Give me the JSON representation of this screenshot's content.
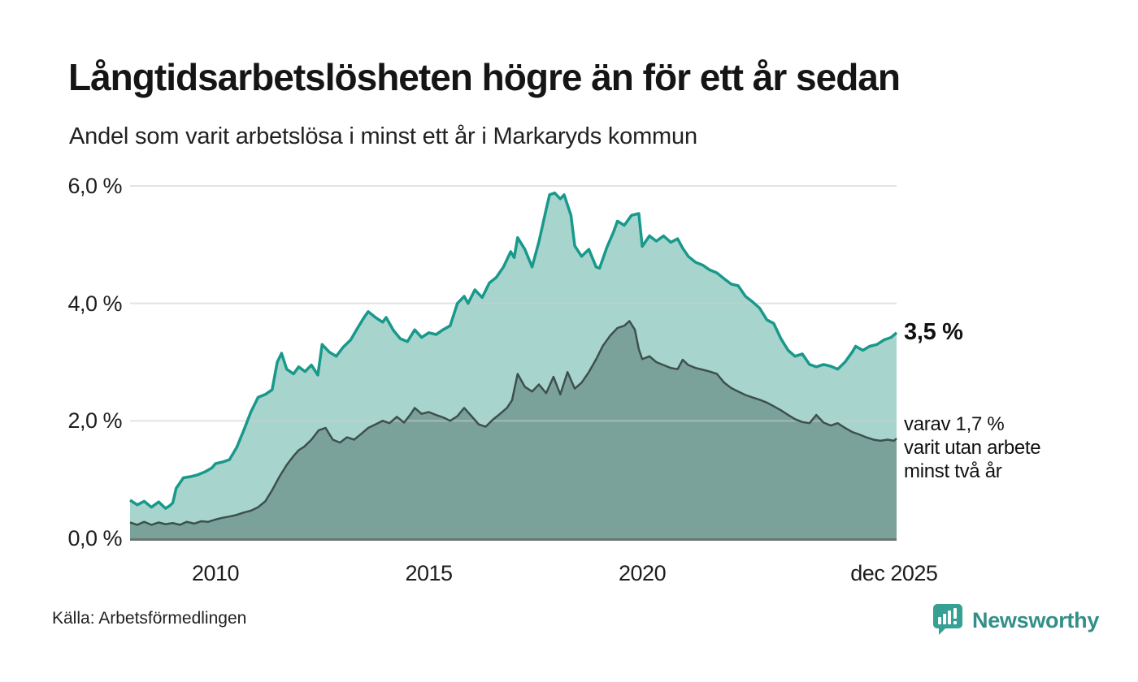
{
  "header": {
    "title": "Långtidsarbetslösheten högre än för ett år sedan",
    "subtitle": "Andel som varit arbetslösa i minst ett år i Markaryds kommun"
  },
  "chart_data": {
    "type": "area",
    "title": "Långtidsarbetslösheten högre än för ett år sedan",
    "subtitle": "Andel som varit arbetslösa i minst ett år i Markaryds kommun",
    "x_domain": [
      2008.0,
      2025.96
    ],
    "y_domain": [
      0,
      6
    ],
    "grid": "horizontal",
    "y_ticks": [
      {
        "label": "6,0 %",
        "value": 6
      },
      {
        "label": "4,0 %",
        "value": 4
      },
      {
        "label": "2,0 %",
        "value": 2
      },
      {
        "label": "0,0 %",
        "value": 0
      }
    ],
    "x_ticks": [
      {
        "label": "2010",
        "value": 2010
      },
      {
        "label": "2015",
        "value": 2015
      },
      {
        "label": "2020",
        "value": 2020
      },
      {
        "label": "dec 2025",
        "value": 2025.9
      }
    ],
    "colors": {
      "line_total": "#18998b",
      "fill_total": "#a7d5ce",
      "line_two_years": "#3e504c",
      "fill_two_years": "#7aa29b",
      "gridline": "#c8cecc",
      "axis": "#6a7673"
    },
    "series": [
      {
        "name": "arbetslösa minst ett år",
        "latest_label": "3,5 %",
        "points": [
          [
            2008.0,
            0.65
          ],
          [
            2008.17,
            0.57
          ],
          [
            2008.33,
            0.63
          ],
          [
            2008.5,
            0.53
          ],
          [
            2008.67,
            0.62
          ],
          [
            2008.83,
            0.51
          ],
          [
            2008.92,
            0.55
          ],
          [
            2009.0,
            0.6
          ],
          [
            2009.08,
            0.85
          ],
          [
            2009.25,
            1.03
          ],
          [
            2009.42,
            1.05
          ],
          [
            2009.58,
            1.08
          ],
          [
            2009.75,
            1.13
          ],
          [
            2009.92,
            1.2
          ],
          [
            2010.0,
            1.27
          ],
          [
            2010.17,
            1.3
          ],
          [
            2010.33,
            1.34
          ],
          [
            2010.5,
            1.55
          ],
          [
            2010.67,
            1.85
          ],
          [
            2010.83,
            2.15
          ],
          [
            2011.0,
            2.4
          ],
          [
            2011.17,
            2.45
          ],
          [
            2011.33,
            2.53
          ],
          [
            2011.45,
            3.0
          ],
          [
            2011.55,
            3.15
          ],
          [
            2011.67,
            2.88
          ],
          [
            2011.83,
            2.8
          ],
          [
            2011.95,
            2.92
          ],
          [
            2012.1,
            2.84
          ],
          [
            2012.25,
            2.95
          ],
          [
            2012.4,
            2.78
          ],
          [
            2012.5,
            3.3
          ],
          [
            2012.67,
            3.17
          ],
          [
            2012.83,
            3.1
          ],
          [
            2013.0,
            3.26
          ],
          [
            2013.17,
            3.38
          ],
          [
            2013.33,
            3.58
          ],
          [
            2013.5,
            3.78
          ],
          [
            2013.58,
            3.86
          ],
          [
            2013.75,
            3.76
          ],
          [
            2013.92,
            3.68
          ],
          [
            2014.0,
            3.76
          ],
          [
            2014.17,
            3.54
          ],
          [
            2014.33,
            3.4
          ],
          [
            2014.5,
            3.35
          ],
          [
            2014.67,
            3.55
          ],
          [
            2014.83,
            3.42
          ],
          [
            2015.0,
            3.5
          ],
          [
            2015.17,
            3.47
          ],
          [
            2015.33,
            3.55
          ],
          [
            2015.5,
            3.62
          ],
          [
            2015.67,
            4.0
          ],
          [
            2015.83,
            4.12
          ],
          [
            2015.92,
            4.0
          ],
          [
            2016.08,
            4.23
          ],
          [
            2016.25,
            4.1
          ],
          [
            2016.42,
            4.35
          ],
          [
            2016.58,
            4.44
          ],
          [
            2016.75,
            4.62
          ],
          [
            2016.92,
            4.88
          ],
          [
            2017.0,
            4.78
          ],
          [
            2017.08,
            5.12
          ],
          [
            2017.25,
            4.92
          ],
          [
            2017.42,
            4.62
          ],
          [
            2017.58,
            5.05
          ],
          [
            2017.75,
            5.6
          ],
          [
            2017.83,
            5.85
          ],
          [
            2017.95,
            5.88
          ],
          [
            2018.08,
            5.78
          ],
          [
            2018.17,
            5.85
          ],
          [
            2018.33,
            5.5
          ],
          [
            2018.42,
            4.98
          ],
          [
            2018.58,
            4.8
          ],
          [
            2018.75,
            4.92
          ],
          [
            2018.92,
            4.62
          ],
          [
            2019.0,
            4.6
          ],
          [
            2019.17,
            4.95
          ],
          [
            2019.33,
            5.22
          ],
          [
            2019.42,
            5.4
          ],
          [
            2019.58,
            5.33
          ],
          [
            2019.75,
            5.5
          ],
          [
            2019.92,
            5.53
          ],
          [
            2020.0,
            4.97
          ],
          [
            2020.17,
            5.15
          ],
          [
            2020.33,
            5.06
          ],
          [
            2020.5,
            5.15
          ],
          [
            2020.67,
            5.04
          ],
          [
            2020.83,
            5.1
          ],
          [
            2020.95,
            4.94
          ],
          [
            2021.08,
            4.8
          ],
          [
            2021.25,
            4.7
          ],
          [
            2021.42,
            4.65
          ],
          [
            2021.58,
            4.57
          ],
          [
            2021.75,
            4.52
          ],
          [
            2021.92,
            4.42
          ],
          [
            2022.08,
            4.33
          ],
          [
            2022.25,
            4.3
          ],
          [
            2022.42,
            4.12
          ],
          [
            2022.58,
            4.03
          ],
          [
            2022.75,
            3.92
          ],
          [
            2022.92,
            3.72
          ],
          [
            2023.08,
            3.66
          ],
          [
            2023.25,
            3.4
          ],
          [
            2023.42,
            3.2
          ],
          [
            2023.58,
            3.1
          ],
          [
            2023.75,
            3.14
          ],
          [
            2023.92,
            2.96
          ],
          [
            2024.08,
            2.92
          ],
          [
            2024.25,
            2.96
          ],
          [
            2024.42,
            2.93
          ],
          [
            2024.58,
            2.88
          ],
          [
            2024.75,
            3.0
          ],
          [
            2024.92,
            3.17
          ],
          [
            2025.0,
            3.27
          ],
          [
            2025.17,
            3.2
          ],
          [
            2025.33,
            3.27
          ],
          [
            2025.5,
            3.3
          ],
          [
            2025.67,
            3.38
          ],
          [
            2025.83,
            3.42
          ],
          [
            2025.96,
            3.5
          ]
        ]
      },
      {
        "name": "varav utan arbete minst två år",
        "latest_label": "1,7 %",
        "points": [
          [
            2008.0,
            0.27
          ],
          [
            2008.17,
            0.23
          ],
          [
            2008.33,
            0.28
          ],
          [
            2008.5,
            0.23
          ],
          [
            2008.67,
            0.27
          ],
          [
            2008.83,
            0.24
          ],
          [
            2009.0,
            0.26
          ],
          [
            2009.17,
            0.23
          ],
          [
            2009.33,
            0.28
          ],
          [
            2009.5,
            0.25
          ],
          [
            2009.67,
            0.29
          ],
          [
            2009.83,
            0.28
          ],
          [
            2010.0,
            0.32
          ],
          [
            2010.17,
            0.35
          ],
          [
            2010.33,
            0.37
          ],
          [
            2010.5,
            0.4
          ],
          [
            2010.67,
            0.44
          ],
          [
            2010.83,
            0.47
          ],
          [
            2011.0,
            0.53
          ],
          [
            2011.17,
            0.63
          ],
          [
            2011.33,
            0.82
          ],
          [
            2011.5,
            1.05
          ],
          [
            2011.67,
            1.25
          ],
          [
            2011.83,
            1.4
          ],
          [
            2011.95,
            1.5
          ],
          [
            2012.08,
            1.56
          ],
          [
            2012.25,
            1.68
          ],
          [
            2012.42,
            1.84
          ],
          [
            2012.58,
            1.88
          ],
          [
            2012.75,
            1.68
          ],
          [
            2012.92,
            1.63
          ],
          [
            2013.08,
            1.72
          ],
          [
            2013.25,
            1.68
          ],
          [
            2013.42,
            1.78
          ],
          [
            2013.58,
            1.88
          ],
          [
            2013.75,
            1.94
          ],
          [
            2013.92,
            2.0
          ],
          [
            2014.08,
            1.96
          ],
          [
            2014.25,
            2.07
          ],
          [
            2014.42,
            1.97
          ],
          [
            2014.58,
            2.12
          ],
          [
            2014.67,
            2.22
          ],
          [
            2014.83,
            2.12
          ],
          [
            2015.0,
            2.15
          ],
          [
            2015.17,
            2.1
          ],
          [
            2015.33,
            2.06
          ],
          [
            2015.5,
            2.0
          ],
          [
            2015.67,
            2.08
          ],
          [
            2015.83,
            2.22
          ],
          [
            2016.0,
            2.08
          ],
          [
            2016.17,
            1.94
          ],
          [
            2016.33,
            1.9
          ],
          [
            2016.5,
            2.02
          ],
          [
            2016.67,
            2.12
          ],
          [
            2016.83,
            2.22
          ],
          [
            2016.95,
            2.35
          ],
          [
            2017.08,
            2.8
          ],
          [
            2017.25,
            2.58
          ],
          [
            2017.42,
            2.5
          ],
          [
            2017.58,
            2.62
          ],
          [
            2017.75,
            2.47
          ],
          [
            2017.92,
            2.75
          ],
          [
            2018.08,
            2.45
          ],
          [
            2018.25,
            2.83
          ],
          [
            2018.42,
            2.55
          ],
          [
            2018.58,
            2.65
          ],
          [
            2018.75,
            2.83
          ],
          [
            2018.92,
            3.05
          ],
          [
            2019.08,
            3.28
          ],
          [
            2019.25,
            3.45
          ],
          [
            2019.42,
            3.58
          ],
          [
            2019.58,
            3.62
          ],
          [
            2019.7,
            3.7
          ],
          [
            2019.83,
            3.55
          ],
          [
            2019.92,
            3.22
          ],
          [
            2020.0,
            3.05
          ],
          [
            2020.17,
            3.1
          ],
          [
            2020.33,
            3.0
          ],
          [
            2020.5,
            2.95
          ],
          [
            2020.67,
            2.9
          ],
          [
            2020.83,
            2.88
          ],
          [
            2020.95,
            3.04
          ],
          [
            2021.08,
            2.95
          ],
          [
            2021.25,
            2.9
          ],
          [
            2021.42,
            2.87
          ],
          [
            2021.58,
            2.84
          ],
          [
            2021.75,
            2.8
          ],
          [
            2021.92,
            2.65
          ],
          [
            2022.08,
            2.56
          ],
          [
            2022.25,
            2.5
          ],
          [
            2022.42,
            2.44
          ],
          [
            2022.58,
            2.4
          ],
          [
            2022.75,
            2.36
          ],
          [
            2022.92,
            2.31
          ],
          [
            2023.08,
            2.25
          ],
          [
            2023.25,
            2.18
          ],
          [
            2023.42,
            2.1
          ],
          [
            2023.58,
            2.03
          ],
          [
            2023.75,
            1.98
          ],
          [
            2023.92,
            1.96
          ],
          [
            2024.08,
            2.1
          ],
          [
            2024.25,
            1.97
          ],
          [
            2024.42,
            1.92
          ],
          [
            2024.58,
            1.96
          ],
          [
            2024.75,
            1.88
          ],
          [
            2024.92,
            1.81
          ],
          [
            2025.08,
            1.77
          ],
          [
            2025.25,
            1.72
          ],
          [
            2025.42,
            1.68
          ],
          [
            2025.58,
            1.66
          ],
          [
            2025.75,
            1.68
          ],
          [
            2025.9,
            1.66
          ],
          [
            2025.96,
            1.7
          ]
        ]
      }
    ],
    "annotations": {
      "latest_total": "3,5 %",
      "sub_lines": [
        "varav 1,7 %",
        "varit utan arbete",
        "minst två år"
      ]
    }
  },
  "footer": {
    "source": "Källa: Arbetsförmedlingen",
    "brand": "Newsworthy",
    "brand_color": "#338f88",
    "brand_icon": "speech-bubble-bar-chart"
  }
}
